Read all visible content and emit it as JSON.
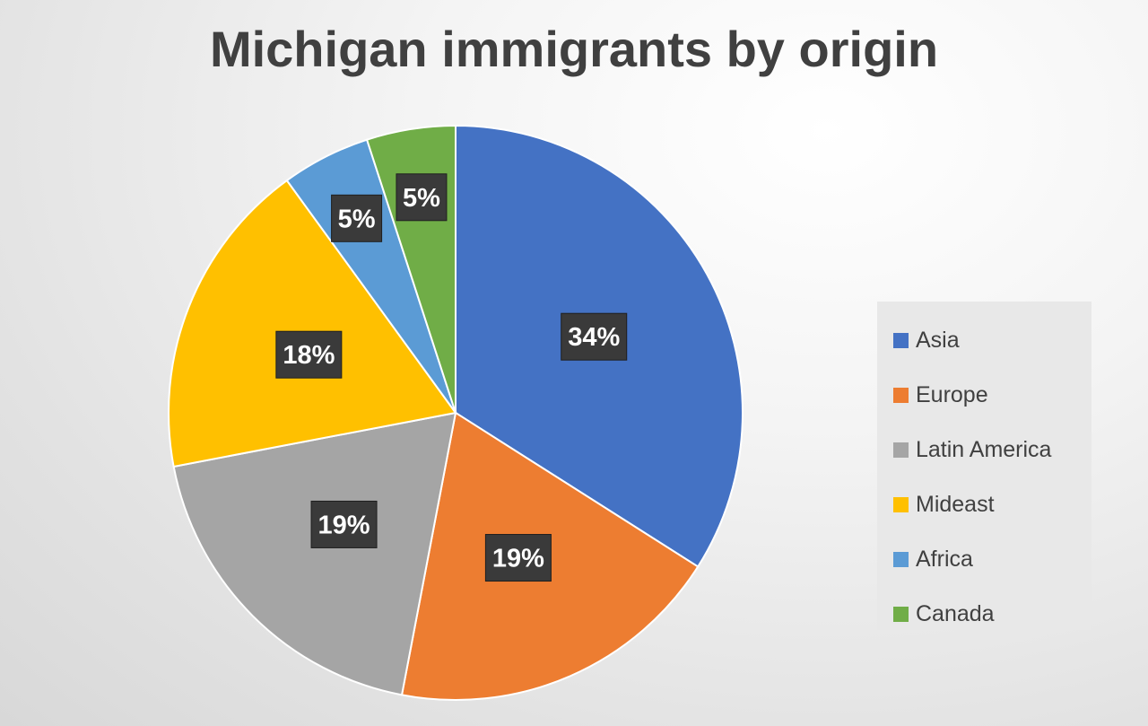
{
  "chart_data": {
    "type": "pie",
    "title": "Michigan immigrants by origin",
    "categories": [
      "Asia",
      "Europe",
      "Latin America",
      "Mideast",
      "Africa",
      "Canada"
    ],
    "values": [
      34,
      19,
      19,
      18,
      5,
      5
    ],
    "labels": [
      "34%",
      "19%",
      "19%",
      "18%",
      "5%",
      "5%"
    ],
    "colors": [
      "#4472C4",
      "#ED7D31",
      "#A5A5A5",
      "#FFC000",
      "#5B9BD5",
      "#70AD47"
    ],
    "legend_position": "right",
    "start_angle": "top",
    "direction": "clockwise"
  }
}
